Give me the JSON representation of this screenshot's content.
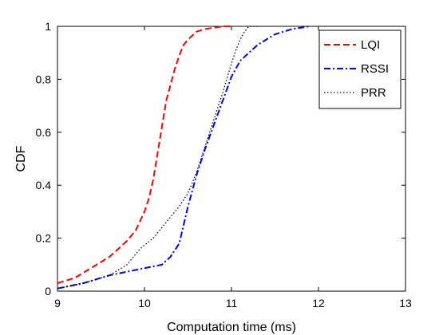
{
  "chart_data": {
    "type": "line",
    "title": "",
    "xlabel": "Computation time (ms)",
    "ylabel": "CDF",
    "xlim": [
      9,
      13
    ],
    "ylim": [
      0,
      1
    ],
    "xticks": [
      "9",
      "10",
      "11",
      "12",
      "13"
    ],
    "yticks": [
      "0",
      "0.2",
      "0.4",
      "0.6",
      "0.8",
      "1"
    ],
    "grid": false,
    "legend_position": "top-right",
    "series": [
      {
        "name": "LQI",
        "color": "#ff0000",
        "style": "dashed",
        "x": [
          9.0,
          9.2,
          9.4,
          9.6,
          9.8,
          9.9,
          10.0,
          10.05,
          10.1,
          10.15,
          10.2,
          10.25,
          10.3,
          10.35,
          10.4,
          10.45,
          10.5,
          10.6,
          10.7,
          10.8,
          10.9,
          11.0
        ],
        "y": [
          0.03,
          0.05,
          0.09,
          0.13,
          0.19,
          0.23,
          0.3,
          0.35,
          0.42,
          0.52,
          0.62,
          0.72,
          0.78,
          0.84,
          0.89,
          0.93,
          0.95,
          0.98,
          0.99,
          0.995,
          1.0,
          1.0
        ]
      },
      {
        "name": "RSSI",
        "color": "#0000ff",
        "style": "dash-dot",
        "x": [
          9.0,
          9.3,
          9.6,
          9.9,
          10.2,
          10.3,
          10.4,
          10.5,
          10.6,
          10.7,
          10.8,
          10.9,
          11.0,
          11.1,
          11.2,
          11.3,
          11.4,
          11.5,
          11.6,
          11.7,
          11.8,
          11.9
        ],
        "y": [
          0.01,
          0.03,
          0.06,
          0.08,
          0.1,
          0.13,
          0.18,
          0.32,
          0.44,
          0.54,
          0.63,
          0.72,
          0.81,
          0.87,
          0.9,
          0.93,
          0.95,
          0.97,
          0.98,
          0.99,
          0.995,
          1.0
        ]
      },
      {
        "name": "PRR",
        "color": "#000000",
        "style": "dotted",
        "x": [
          9.0,
          9.3,
          9.6,
          9.8,
          9.95,
          10.1,
          10.2,
          10.3,
          10.4,
          10.5,
          10.6,
          10.7,
          10.8,
          10.9,
          11.0,
          11.05,
          11.1,
          11.15,
          11.2,
          11.3
        ],
        "y": [
          0.01,
          0.03,
          0.06,
          0.1,
          0.16,
          0.2,
          0.24,
          0.28,
          0.32,
          0.37,
          0.45,
          0.55,
          0.65,
          0.75,
          0.86,
          0.91,
          0.95,
          0.98,
          1.0,
          1.0
        ]
      }
    ]
  }
}
